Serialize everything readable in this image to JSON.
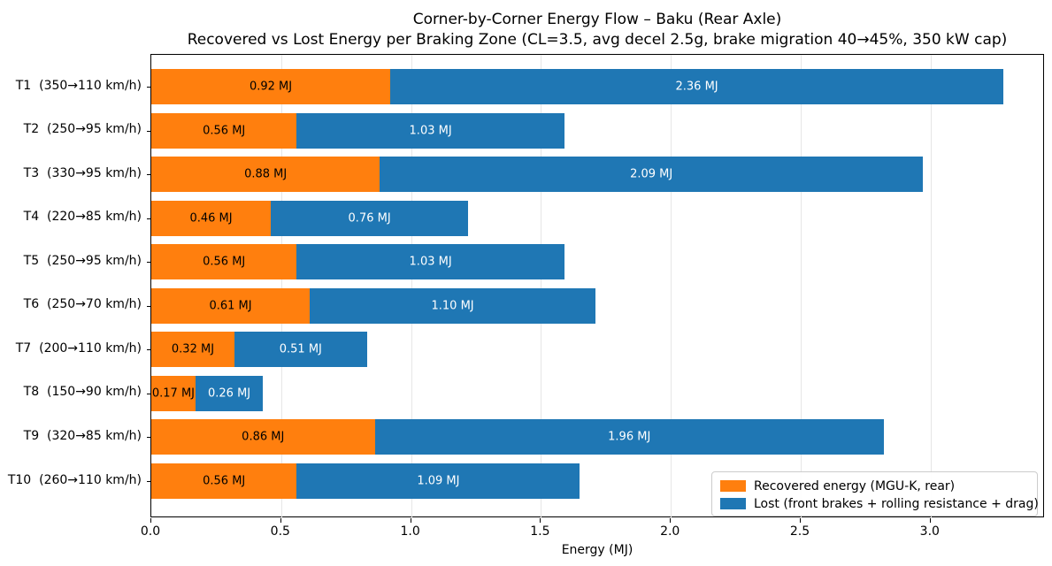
{
  "title": "Corner-by-Corner Energy Flow – Baku (Rear Axle)",
  "subtitle": "Recovered vs Lost Energy per Braking Zone (CL=3.5, avg decel 2.5g, brake migration 40→45%, 350 kW cap)",
  "chart_data": {
    "type": "bar",
    "orientation": "horizontal",
    "stacked": true,
    "title": "Corner-by-Corner Energy Flow – Baku (Rear Axle)",
    "subtitle": "Recovered vs Lost Energy per Braking Zone (CL=3.5, avg decel 2.5g, brake migration 40→45%, 350 kW cap)",
    "categories": [
      "T1  (350→110 km/h)",
      "T2  (250→95 km/h)",
      "T3  (330→95 km/h)",
      "T4  (220→85 km/h)",
      "T5  (250→95 km/h)",
      "T6  (250→70 km/h)",
      "T7  (200→110 km/h)",
      "T8  (150→90 km/h)",
      "T9  (320→85 km/h)",
      "T10  (260→110 km/h)"
    ],
    "series": [
      {
        "name": "Recovered energy (MGU-K, rear)",
        "color": "#ff7f0e",
        "label_color": "#000000",
        "values": [
          0.92,
          0.56,
          0.88,
          0.46,
          0.56,
          0.61,
          0.32,
          0.17,
          0.86,
          0.56
        ]
      },
      {
        "name": "Lost (front brakes + rolling resistance + drag)",
        "color": "#1f77b4",
        "label_color": "#ffffff",
        "values": [
          2.36,
          1.03,
          2.09,
          0.76,
          1.03,
          1.1,
          0.51,
          0.26,
          1.96,
          1.09
        ]
      }
    ],
    "bar_label_suffix": " MJ",
    "bar_label_decimals": 2,
    "xlabel": "Energy (MJ)",
    "xlim": [
      0,
      3.44
    ],
    "xticks": [
      0.0,
      0.5,
      1.0,
      1.5,
      2.0,
      2.5,
      3.0
    ],
    "xtick_decimals": 1,
    "grid": "vertical",
    "grid_color": "#e6e6e6",
    "legend_position": "lower right"
  },
  "colors": {
    "recovered": "#ff7f0e",
    "lost": "#1f77b4",
    "grid": "#e6e6e6",
    "spine": "#000000",
    "legend_border": "#cccccc"
  }
}
